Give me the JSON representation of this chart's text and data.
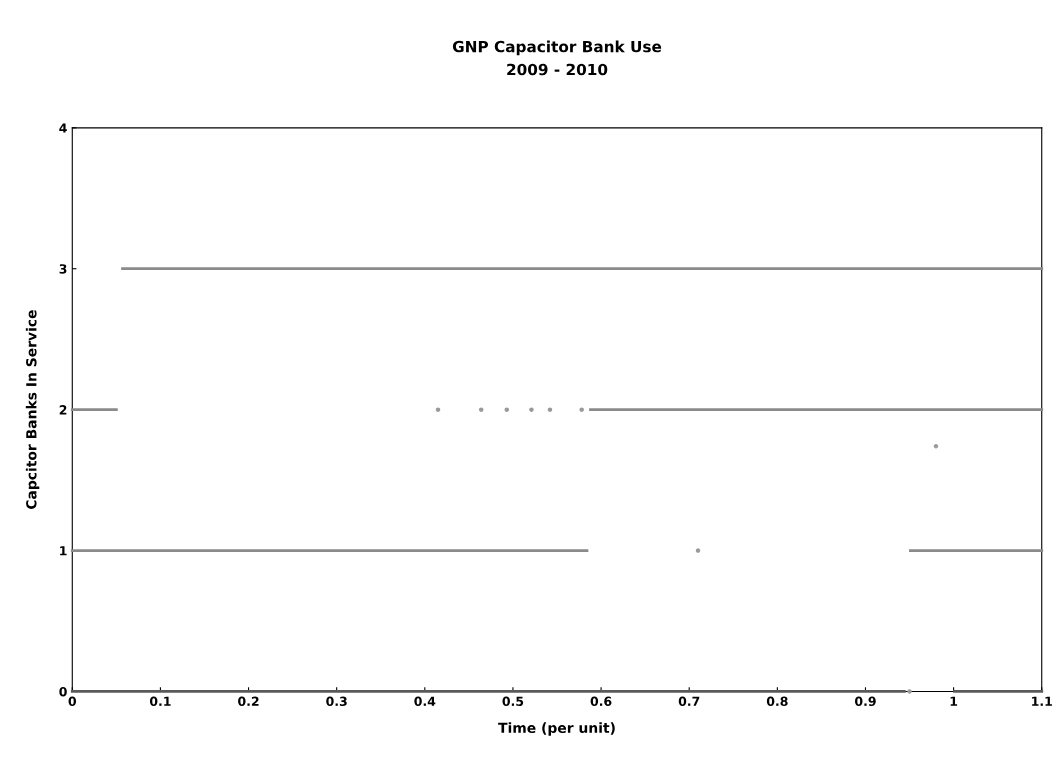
{
  "chart_data": {
    "type": "line",
    "title": "GNP Capacitor Bank Use\n2009 - 2010",
    "xlabel": "Time (per unit)",
    "ylabel": "Capcitor Banks In Service",
    "series": [
      {
        "color": "#8a8a8a",
        "x": [
          0.057,
          1.1
        ],
        "values": [
          3,
          3
        ]
      },
      {
        "color": "#8a8a8a",
        "x": [
          0,
          0.05,
          0.3,
          0.588,
          1.1
        ],
        "values": [
          2,
          2,
          null,
          2,
          2
        ]
      },
      {
        "color": "#8a8a8a",
        "x": [
          0,
          0.584,
          0.8,
          0.951,
          1.1
        ],
        "values": [
          1,
          1,
          null,
          1,
          1
        ]
      },
      {
        "color": "#5a5a5a",
        "x": [
          0,
          0.944,
          0.97,
          1.001,
          1.1
        ],
        "values": [
          0,
          0,
          null,
          0,
          0
        ]
      },
      {
        "type": "scatter",
        "color": "#9a9a9a",
        "x": [
          0.415,
          0.464,
          0.493,
          0.521,
          0.542,
          0.578,
          0.71,
          0.95,
          0.98
        ],
        "values": [
          2,
          2,
          2,
          2,
          2,
          2,
          1,
          0,
          1.74
        ]
      }
    ],
    "xlim": [
      0,
      1.1
    ],
    "xticks": [
      0,
      0.1,
      0.2,
      0.3,
      0.4,
      0.5,
      0.6,
      0.7,
      0.8,
      0.9,
      1,
      1.1
    ],
    "ylim": [
      0,
      4
    ],
    "yticks": [
      0,
      1,
      2,
      3,
      4
    ],
    "grid": false,
    "marker": "none"
  }
}
